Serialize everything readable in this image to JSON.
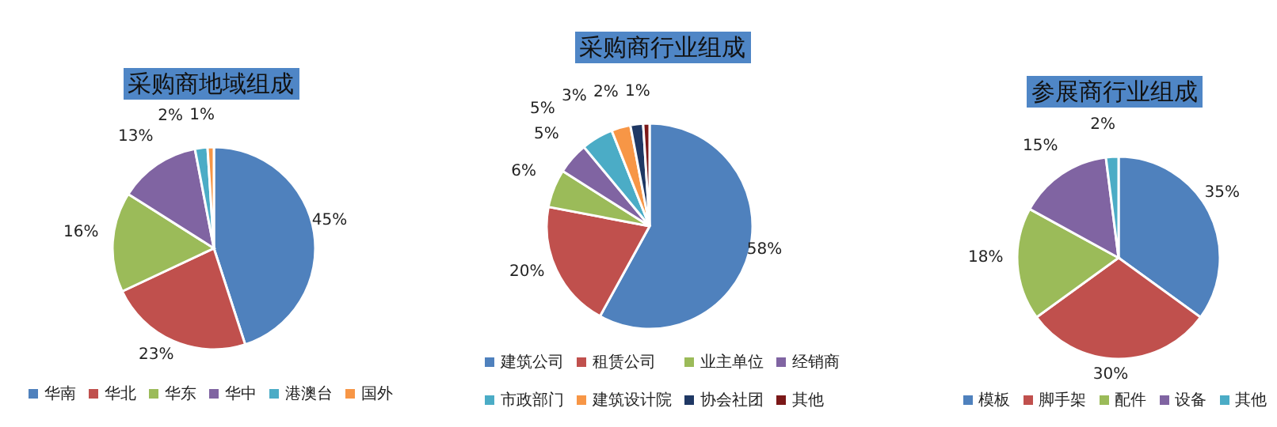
{
  "chart_data": [
    {
      "type": "pie",
      "title": "采购商地域组成",
      "categories": [
        "华南",
        "华北",
        "华东",
        "华中",
        "港澳台",
        "国外"
      ],
      "values": [
        45,
        23,
        16,
        13,
        2,
        1
      ],
      "value_labels": [
        "45%",
        "23%",
        "16%",
        "13%",
        "2%",
        "1%"
      ],
      "colors": [
        "#4f81bd",
        "#c0504d",
        "#9bbb59",
        "#8064a2",
        "#4bacc6",
        "#f79646"
      ],
      "legend": "bottom"
    },
    {
      "type": "pie",
      "title": "采购商行业组成",
      "categories": [
        "建筑公司",
        "租赁公司",
        "业主单位",
        "经销商",
        "市政部门",
        "建筑设计院",
        "协会社团",
        "其他"
      ],
      "values": [
        58,
        20,
        6,
        5,
        5,
        3,
        2,
        1
      ],
      "value_labels": [
        "58%",
        "20%",
        "6%",
        "5%",
        "5%",
        "3%",
        "2%",
        "1%"
      ],
      "colors": [
        "#4f81bd",
        "#c0504d",
        "#9bbb59",
        "#8064a2",
        "#4bacc6",
        "#f79646",
        "#1f3864",
        "#7b1818"
      ],
      "legend": "bottom"
    },
    {
      "type": "pie",
      "title": "参展商行业组成",
      "categories": [
        "模板",
        "脚手架",
        "配件",
        "设备",
        "其他"
      ],
      "values": [
        35,
        30,
        18,
        15,
        2
      ],
      "value_labels": [
        "35%",
        "30%",
        "18%",
        "15%",
        "2%"
      ],
      "colors": [
        "#4f81bd",
        "#c0504d",
        "#9bbb59",
        "#8064a2",
        "#4bacc6"
      ],
      "legend": "bottom"
    }
  ]
}
